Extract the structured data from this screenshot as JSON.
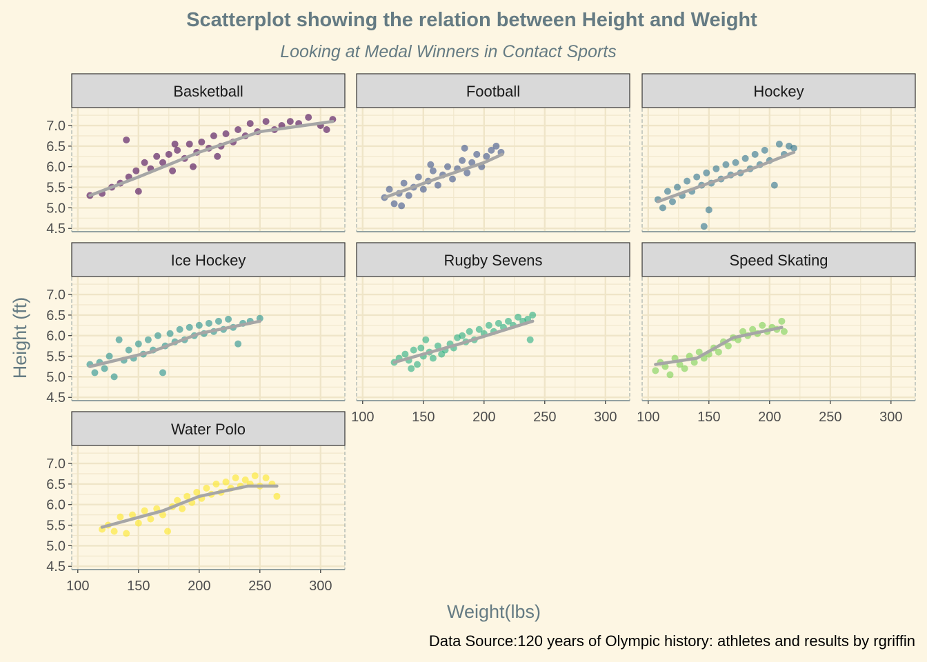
{
  "chart_data": {
    "type": "scatter",
    "title": "Scatterplot showing the relation between Height and Weight",
    "subtitle": "Looking at Medal Winners in Contact Sports",
    "xlabel": "Weight(lbs)",
    "ylabel": "Height (ft)",
    "caption": "Data Source:120 years of Olympic history: athletes and results by rgriffin",
    "xlim": [
      95,
      320
    ],
    "ylim": [
      4.42,
      7.42
    ],
    "x_ticks": [
      100,
      150,
      200,
      250,
      300
    ],
    "y_ticks": [
      4.5,
      5.0,
      5.5,
      6.0,
      6.5,
      7.0
    ],
    "x_tick_labels": [
      "100",
      "150",
      "200",
      "250",
      "300"
    ],
    "y_tick_labels": [
      "4.5",
      "5.0",
      "5.5",
      "6.0",
      "6.5",
      "7.0"
    ],
    "grid": true,
    "facets": [
      {
        "name": "Basketball",
        "color": "#440154",
        "points": [
          [
            110,
            5.3
          ],
          [
            120,
            5.35
          ],
          [
            128,
            5.5
          ],
          [
            135,
            5.6
          ],
          [
            140,
            6.65
          ],
          [
            142,
            5.75
          ],
          [
            148,
            5.9
          ],
          [
            150,
            5.4
          ],
          [
            155,
            6.1
          ],
          [
            160,
            5.95
          ],
          [
            165,
            6.25
          ],
          [
            170,
            6.1
          ],
          [
            175,
            6.3
          ],
          [
            178,
            5.9
          ],
          [
            182,
            6.4
          ],
          [
            188,
            6.2
          ],
          [
            192,
            6.55
          ],
          [
            198,
            6.35
          ],
          [
            202,
            6.6
          ],
          [
            208,
            6.45
          ],
          [
            212,
            6.75
          ],
          [
            218,
            6.5
          ],
          [
            222,
            6.8
          ],
          [
            228,
            6.6
          ],
          [
            232,
            6.9
          ],
          [
            238,
            6.75
          ],
          [
            242,
            7.05
          ],
          [
            248,
            6.85
          ],
          [
            255,
            7.1
          ],
          [
            262,
            6.9
          ],
          [
            268,
            7.0
          ],
          [
            275,
            7.1
          ],
          [
            282,
            7.05
          ],
          [
            290,
            7.2
          ],
          [
            300,
            7.0
          ],
          [
            305,
            6.9
          ],
          [
            310,
            7.15
          ],
          [
            180,
            6.55
          ],
          [
            195,
            6.0
          ],
          [
            215,
            6.25
          ]
        ],
        "trend": [
          [
            110,
            5.3
          ],
          [
            150,
            5.75
          ],
          [
            200,
            6.35
          ],
          [
            250,
            6.85
          ],
          [
            310,
            7.1
          ]
        ]
      },
      {
        "name": "Football",
        "color": "#3b528b",
        "points": [
          [
            118,
            5.25
          ],
          [
            122,
            5.45
          ],
          [
            126,
            5.1
          ],
          [
            130,
            5.35
          ],
          [
            134,
            5.6
          ],
          [
            138,
            5.3
          ],
          [
            142,
            5.5
          ],
          [
            146,
            5.75
          ],
          [
            150,
            5.45
          ],
          [
            154,
            5.65
          ],
          [
            158,
            5.9
          ],
          [
            162,
            5.55
          ],
          [
            166,
            5.8
          ],
          [
            170,
            6.0
          ],
          [
            174,
            5.7
          ],
          [
            178,
            5.95
          ],
          [
            182,
            6.15
          ],
          [
            186,
            5.85
          ],
          [
            190,
            6.1
          ],
          [
            194,
            6.3
          ],
          [
            198,
            6.0
          ],
          [
            202,
            6.25
          ],
          [
            206,
            6.4
          ],
          [
            210,
            6.5
          ],
          [
            214,
            6.35
          ],
          [
            132,
            5.05
          ],
          [
            156,
            6.05
          ],
          [
            184,
            6.45
          ]
        ],
        "trend": [
          [
            118,
            5.25
          ],
          [
            160,
            5.7
          ],
          [
            200,
            6.1
          ],
          [
            215,
            6.3
          ]
        ]
      },
      {
        "name": "Hockey",
        "color": "#2c728e",
        "points": [
          [
            108,
            5.2
          ],
          [
            112,
            5.0
          ],
          [
            116,
            5.4
          ],
          [
            120,
            5.15
          ],
          [
            124,
            5.5
          ],
          [
            128,
            5.3
          ],
          [
            132,
            5.65
          ],
          [
            136,
            5.4
          ],
          [
            140,
            5.75
          ],
          [
            144,
            5.55
          ],
          [
            146,
            4.55
          ],
          [
            148,
            5.85
          ],
          [
            152,
            5.6
          ],
          [
            156,
            5.95
          ],
          [
            160,
            5.7
          ],
          [
            164,
            6.05
          ],
          [
            168,
            5.8
          ],
          [
            172,
            6.1
          ],
          [
            176,
            5.85
          ],
          [
            180,
            6.2
          ],
          [
            184,
            5.95
          ],
          [
            188,
            6.3
          ],
          [
            192,
            6.05
          ],
          [
            196,
            6.4
          ],
          [
            200,
            6.15
          ],
          [
            204,
            5.55
          ],
          [
            208,
            6.55
          ],
          [
            212,
            6.3
          ],
          [
            216,
            6.5
          ],
          [
            220,
            6.45
          ],
          [
            150,
            4.95
          ]
        ],
        "trend": [
          [
            108,
            5.15
          ],
          [
            150,
            5.6
          ],
          [
            190,
            6.0
          ],
          [
            220,
            6.35
          ]
        ]
      },
      {
        "name": "Ice Hockey",
        "color": "#21908c",
        "points": [
          [
            110,
            5.3
          ],
          [
            114,
            5.1
          ],
          [
            118,
            5.35
          ],
          [
            122,
            5.2
          ],
          [
            126,
            5.5
          ],
          [
            130,
            5.0
          ],
          [
            134,
            5.9
          ],
          [
            138,
            5.4
          ],
          [
            142,
            5.65
          ],
          [
            146,
            5.45
          ],
          [
            150,
            5.8
          ],
          [
            154,
            5.55
          ],
          [
            158,
            5.9
          ],
          [
            162,
            5.65
          ],
          [
            166,
            6.0
          ],
          [
            170,
            5.1
          ],
          [
            172,
            5.75
          ],
          [
            176,
            6.05
          ],
          [
            180,
            5.85
          ],
          [
            184,
            6.15
          ],
          [
            188,
            5.9
          ],
          [
            192,
            6.2
          ],
          [
            196,
            6.0
          ],
          [
            200,
            6.25
          ],
          [
            204,
            6.05
          ],
          [
            208,
            6.3
          ],
          [
            212,
            6.1
          ],
          [
            216,
            6.35
          ],
          [
            220,
            6.15
          ],
          [
            224,
            6.4
          ],
          [
            228,
            6.2
          ],
          [
            232,
            5.8
          ],
          [
            236,
            6.3
          ],
          [
            242,
            6.35
          ],
          [
            250,
            6.42
          ]
        ],
        "trend": [
          [
            110,
            5.25
          ],
          [
            160,
            5.6
          ],
          [
            200,
            6.05
          ],
          [
            250,
            6.35
          ]
        ]
      },
      {
        "name": "Rugby Sevens",
        "color": "#27ad81",
        "points": [
          [
            126,
            5.35
          ],
          [
            130,
            5.45
          ],
          [
            135,
            5.55
          ],
          [
            138,
            5.4
          ],
          [
            140,
            5.2
          ],
          [
            142,
            5.65
          ],
          [
            145,
            5.3
          ],
          [
            148,
            5.7
          ],
          [
            150,
            5.5
          ],
          [
            152,
            5.9
          ],
          [
            155,
            5.6
          ],
          [
            158,
            5.45
          ],
          [
            162,
            5.75
          ],
          [
            165,
            5.55
          ],
          [
            168,
            5.65
          ],
          [
            172,
            5.8
          ],
          [
            175,
            5.7
          ],
          [
            178,
            5.95
          ],
          [
            182,
            6.0
          ],
          [
            185,
            5.85
          ],
          [
            188,
            6.1
          ],
          [
            192,
            5.9
          ],
          [
            196,
            6.15
          ],
          [
            200,
            6.05
          ],
          [
            204,
            6.25
          ],
          [
            208,
            6.1
          ],
          [
            212,
            6.3
          ],
          [
            216,
            6.2
          ],
          [
            220,
            6.35
          ],
          [
            224,
            6.25
          ],
          [
            228,
            6.45
          ],
          [
            232,
            6.35
          ],
          [
            236,
            6.4
          ],
          [
            238,
            5.9
          ],
          [
            240,
            6.5
          ]
        ],
        "trend": [
          [
            126,
            5.35
          ],
          [
            180,
            5.8
          ],
          [
            240,
            6.35
          ]
        ]
      },
      {
        "name": "Speed Skating",
        "color": "#7ad151",
        "points": [
          [
            106,
            5.15
          ],
          [
            110,
            5.35
          ],
          [
            114,
            5.25
          ],
          [
            118,
            5.05
          ],
          [
            122,
            5.45
          ],
          [
            126,
            5.3
          ],
          [
            130,
            5.2
          ],
          [
            134,
            5.5
          ],
          [
            138,
            5.35
          ],
          [
            142,
            5.6
          ],
          [
            146,
            5.45
          ],
          [
            150,
            5.55
          ],
          [
            154,
            5.7
          ],
          [
            158,
            5.6
          ],
          [
            162,
            5.85
          ],
          [
            166,
            5.75
          ],
          [
            170,
            5.95
          ],
          [
            174,
            5.9
          ],
          [
            178,
            6.1
          ],
          [
            182,
            6.0
          ],
          [
            186,
            6.15
          ],
          [
            190,
            6.05
          ],
          [
            194,
            6.25
          ],
          [
            198,
            6.1
          ],
          [
            202,
            6.2
          ],
          [
            206,
            6.15
          ],
          [
            210,
            6.35
          ],
          [
            212,
            6.1
          ]
        ],
        "trend": [
          [
            106,
            5.3
          ],
          [
            140,
            5.45
          ],
          [
            170,
            5.95
          ],
          [
            210,
            6.2
          ]
        ]
      },
      {
        "name": "Water Polo",
        "color": "#fde725",
        "points": [
          [
            120,
            5.4
          ],
          [
            125,
            5.5
          ],
          [
            130,
            5.35
          ],
          [
            135,
            5.7
          ],
          [
            140,
            5.3
          ],
          [
            145,
            5.75
          ],
          [
            150,
            5.55
          ],
          [
            155,
            5.85
          ],
          [
            160,
            5.65
          ],
          [
            165,
            5.9
          ],
          [
            170,
            5.75
          ],
          [
            174,
            5.35
          ],
          [
            178,
            5.95
          ],
          [
            182,
            6.1
          ],
          [
            186,
            5.9
          ],
          [
            190,
            6.2
          ],
          [
            194,
            6.05
          ],
          [
            198,
            6.3
          ],
          [
            202,
            6.15
          ],
          [
            206,
            6.4
          ],
          [
            210,
            6.25
          ],
          [
            214,
            6.5
          ],
          [
            218,
            6.3
          ],
          [
            222,
            6.55
          ],
          [
            226,
            6.4
          ],
          [
            230,
            6.65
          ],
          [
            234,
            6.45
          ],
          [
            238,
            6.6
          ],
          [
            242,
            6.5
          ],
          [
            246,
            6.7
          ],
          [
            250,
            6.45
          ],
          [
            255,
            6.65
          ],
          [
            260,
            6.5
          ],
          [
            264,
            6.2
          ]
        ],
        "trend": [
          [
            120,
            5.45
          ],
          [
            170,
            5.85
          ],
          [
            200,
            6.2
          ],
          [
            240,
            6.45
          ],
          [
            264,
            6.45
          ]
        ]
      }
    ],
    "trend_color": "#a6a6a6"
  }
}
